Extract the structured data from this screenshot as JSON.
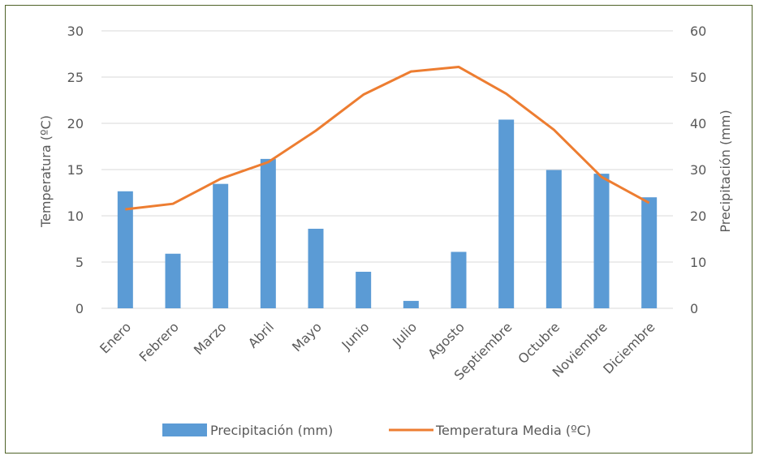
{
  "chart_data": {
    "type": "bar+line",
    "title": "",
    "categories": [
      "Enero",
      "Febrero",
      "Marzo",
      "Abril",
      "Mayo",
      "Junio",
      "Julio",
      "Agosto",
      "Septiembre",
      "Octubre",
      "Noviembre",
      "Diciembre"
    ],
    "series": [
      {
        "name": "Precipitación (mm)",
        "type": "bar",
        "axis": "right",
        "color": "#5b9bd5",
        "values": [
          25.3,
          11.8,
          26.9,
          32.3,
          17.2,
          7.9,
          1.6,
          12.2,
          40.8,
          29.9,
          29.1,
          24.0
        ]
      },
      {
        "name": "Temperatura Media (ºC)",
        "type": "line",
        "axis": "left",
        "color": "#ed7d31",
        "values": [
          10.7,
          11.3,
          14.0,
          15.8,
          19.2,
          23.1,
          25.6,
          26.1,
          23.2,
          19.3,
          14.2,
          11.4
        ]
      }
    ],
    "y_left": {
      "label": "Temperatura (ºC)",
      "min": 0,
      "max": 30,
      "ticks": [
        "0",
        "5",
        "10",
        "15",
        "20",
        "25",
        "30"
      ]
    },
    "y_right": {
      "label": "Precipitación (mm)",
      "min": 0,
      "max": 60,
      "ticks": [
        "0",
        "10",
        "20",
        "30",
        "40",
        "50",
        "60"
      ]
    },
    "grid": true,
    "legend": "bottom"
  }
}
